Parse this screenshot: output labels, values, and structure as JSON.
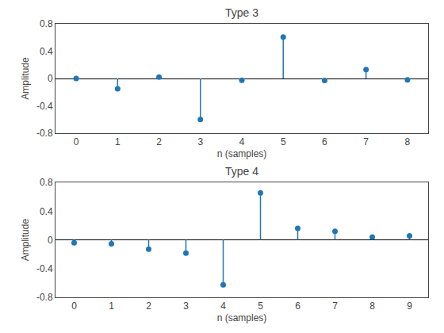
{
  "chart_data": [
    {
      "type": "stem",
      "title": "Type 3",
      "xlabel": "n (samples)",
      "ylabel": "Amplitude",
      "x": [
        0,
        1,
        2,
        3,
        4,
        5,
        6,
        7,
        8
      ],
      "values": [
        0.0,
        -0.15,
        0.02,
        -0.6,
        -0.025,
        0.605,
        -0.03,
        0.13,
        -0.02
      ],
      "color": "#1f77b4",
      "marker": "circle",
      "xlim": [
        -0.5,
        8.5
      ],
      "xticks": [
        0,
        1,
        2,
        3,
        4,
        5,
        6,
        7,
        8
      ],
      "ylim": [
        -0.8,
        0.8
      ],
      "yticks": [
        -0.8,
        -0.4,
        0,
        0.4,
        0.8
      ],
      "grid": false
    },
    {
      "type": "stem",
      "title": "Type 4",
      "xlabel": "n (samples)",
      "ylabel": "Amplitude",
      "x": [
        0,
        1,
        2,
        3,
        4,
        5,
        6,
        7,
        8,
        9
      ],
      "values": [
        -0.04,
        -0.055,
        -0.13,
        -0.185,
        -0.625,
        0.655,
        0.16,
        0.12,
        0.04,
        0.055
      ],
      "color": "#1f77b4",
      "marker": "circle",
      "xlim": [
        -0.5,
        9.5
      ],
      "xticks": [
        0,
        1,
        2,
        3,
        4,
        5,
        6,
        7,
        8,
        9
      ],
      "ylim": [
        -0.8,
        0.8
      ],
      "yticks": [
        -0.8,
        -0.4,
        0,
        0.4,
        0.8
      ],
      "grid": false
    }
  ]
}
